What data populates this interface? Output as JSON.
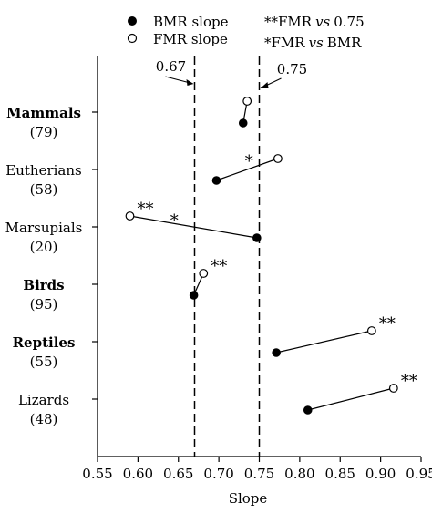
{
  "legend": {
    "bmr_label": "BMR slope",
    "fmr_label": "FMR slope",
    "note1_stars": "**",
    "note1_text": "FMR",
    "note1_vs": "vs",
    "note1_tail": "0.75",
    "note2_stars": "*",
    "note2_text": "FMR",
    "note2_vs": "vs",
    "note2_tail": "BMR"
  },
  "chart_data": {
    "type": "scatter",
    "title": "",
    "xlabel": "Slope",
    "ylabel": "",
    "xlim": [
      0.55,
      0.95
    ],
    "xticks": [
      "0.55",
      "0.60",
      "0.65",
      "0.70",
      "0.75",
      "0.80",
      "0.85",
      "0.90",
      "0.95"
    ],
    "grid": false,
    "legend_position": "top",
    "reference_lines": [
      {
        "x": 0.67,
        "label": "0.67",
        "style": "dashed"
      },
      {
        "x": 0.75,
        "label": "0.75",
        "style": "dashed"
      }
    ],
    "series": [
      {
        "name": "BMR slope",
        "marker": "filled-circle"
      },
      {
        "name": "FMR slope",
        "marker": "open-circle"
      }
    ],
    "groups": [
      {
        "label": "Mammals",
        "n": "(79)",
        "bold": true,
        "bmr": 0.73,
        "fmr": 0.735,
        "annotation": "",
        "star_pos": ""
      },
      {
        "label": "Eutherians",
        "n": "(58)",
        "bold": false,
        "bmr": 0.697,
        "fmr": 0.773,
        "annotation": "*",
        "star_pos": "middle"
      },
      {
        "label": "Marsupials",
        "n": "(20)",
        "bold": false,
        "bmr": 0.747,
        "fmr": 0.59,
        "annotation": "**",
        "annotation2": "*",
        "star_pos": "fmr"
      },
      {
        "label": "Birds",
        "n": "(95)",
        "bold": true,
        "bmr": 0.669,
        "fmr": 0.681,
        "annotation": "**",
        "star_pos": "fmr"
      },
      {
        "label": "Reptiles",
        "n": "(55)",
        "bold": true,
        "bmr": 0.771,
        "fmr": 0.889,
        "annotation": "**",
        "star_pos": "fmr"
      },
      {
        "label": "Lizards",
        "n": "(48)",
        "bold": false,
        "bmr": 0.81,
        "fmr": 0.916,
        "annotation": "**",
        "star_pos": "fmr"
      }
    ]
  }
}
